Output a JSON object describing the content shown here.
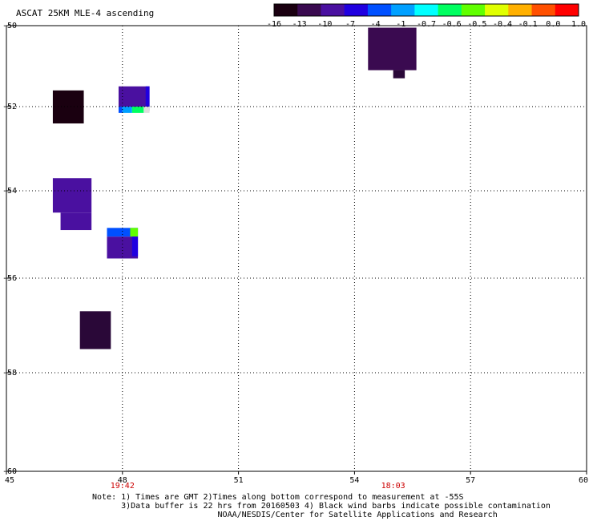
{
  "title": "ASCAT 25KM MLE-4 ascending",
  "colorbar": {
    "tick_labels": [
      "-16",
      "-13",
      "-10",
      "-7",
      "-4",
      "-1",
      "-0.7",
      "-0.6",
      "-0.5",
      "-0.4",
      "-0.1",
      "0.0",
      "1.0"
    ],
    "colors": [
      "#1a0010",
      "#3a0a50",
      "#4a10a0",
      "#2000e0",
      "#0050ff",
      "#00a0ff",
      "#00ffff",
      "#00ff60",
      "#60ff00",
      "#e0ff00",
      "#ffb000",
      "#ff5000",
      "#ff0000"
    ]
  },
  "axes": {
    "x_ticks": [
      "45",
      "48",
      "51",
      "54",
      "57",
      "60"
    ],
    "y_ticks": [
      "-50",
      "-52",
      "-54",
      "-56",
      "-58",
      "-60"
    ],
    "x_range": [
      45,
      60
    ],
    "y_range": [
      -50,
      -60
    ],
    "grid": true
  },
  "times": [
    {
      "label": "19:42",
      "lon": 48
    },
    {
      "label": "18:03",
      "lon": 55
    }
  ],
  "notes": {
    "line1": "Note: 1) Times are GMT 2)Times along bottom correspond to measurement at -55S",
    "line2": "      3)Data buffer is 22 hrs from 20160503 4) Black wind barbs indicate possible contamination",
    "line3": "                          NOAA/NESDIS/Center for Satellite Applications and Research"
  },
  "chart_data": {
    "type": "heatmap",
    "title": "ASCAT 25KM MLE-4 ascending",
    "xlim": [
      45,
      60
    ],
    "ylim": [
      -60,
      -50
    ],
    "cells": [
      {
        "lon0": 54.35,
        "lon1": 55.6,
        "lat0": -50.05,
        "lat1": -51.1,
        "color": "#3a0a50"
      },
      {
        "lon0": 55.0,
        "lon1": 55.3,
        "lat0": -51.1,
        "lat1": -51.3,
        "color": "#2a0838"
      },
      {
        "lon0": 46.2,
        "lon1": 47.0,
        "lat0": -51.6,
        "lat1": -52.4,
        "color": "#1a0010"
      },
      {
        "lon0": 47.9,
        "lon1": 48.7,
        "lat0": -51.5,
        "lat1": -52.0,
        "color": "#4a10a0"
      },
      {
        "lon0": 48.6,
        "lon1": 48.7,
        "lat0": -51.5,
        "lat1": -52.1,
        "color": "#2000e0"
      },
      {
        "lon0": 47.9,
        "lon1": 48.0,
        "lat0": -52.0,
        "lat1": -52.15,
        "color": "#0050ff"
      },
      {
        "lon0": 48.0,
        "lon1": 48.25,
        "lat0": -52.0,
        "lat1": -52.15,
        "color": "#00a0ff"
      },
      {
        "lon0": 48.25,
        "lon1": 48.55,
        "lat0": -52.0,
        "lat1": -52.15,
        "color": "#00ff60"
      },
      {
        "lon0": 48.55,
        "lon1": 48.7,
        "lat0": -52.0,
        "lat1": -52.15,
        "color": "#dddddd"
      },
      {
        "lon0": 46.2,
        "lon1": 47.2,
        "lat0": -53.7,
        "lat1": -54.5,
        "color": "#4a10a0"
      },
      {
        "lon0": 46.4,
        "lon1": 47.2,
        "lat0": -54.5,
        "lat1": -54.9,
        "color": "#4a10a0"
      },
      {
        "lon0": 47.6,
        "lon1": 48.4,
        "lat0": -54.85,
        "lat1": -55.05,
        "color": "#0050ff"
      },
      {
        "lon0": 48.2,
        "lon1": 48.4,
        "lat0": -54.85,
        "lat1": -55.05,
        "color": "#60ff00"
      },
      {
        "lon0": 47.6,
        "lon1": 48.4,
        "lat0": -55.05,
        "lat1": -55.55,
        "color": "#4a10a0"
      },
      {
        "lon0": 48.25,
        "lon1": 48.4,
        "lat0": -55.05,
        "lat1": -55.5,
        "color": "#2000e0"
      },
      {
        "lon0": 46.9,
        "lon1": 47.7,
        "lat0": -56.7,
        "lat1": -57.5,
        "color": "#2a0838"
      }
    ]
  }
}
